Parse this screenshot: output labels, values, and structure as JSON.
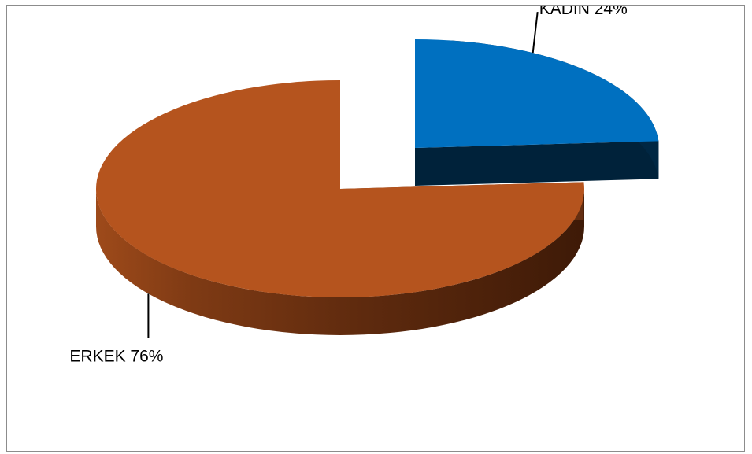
{
  "chart_data": {
    "type": "pie",
    "style": "3d-exploded",
    "slices": [
      {
        "category": "KADIN",
        "value": 24,
        "label": "KADIN 24%",
        "color": "#0070C0",
        "exploded": true
      },
      {
        "category": "ERKEK",
        "value": 76,
        "label": "ERKEK 76%",
        "color": "#B5541E",
        "exploded": false
      }
    ],
    "title": "",
    "legend": "none"
  }
}
